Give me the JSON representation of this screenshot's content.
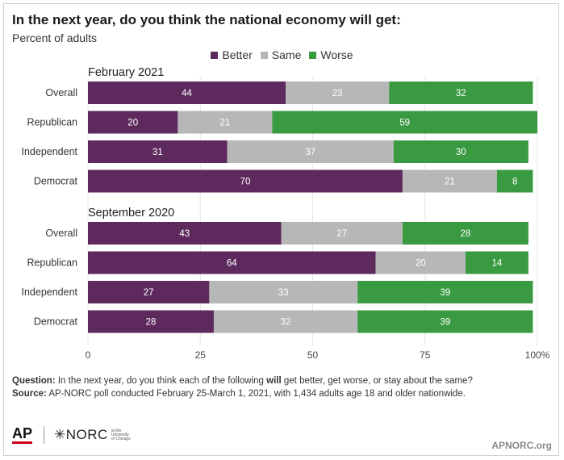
{
  "title": "In the next year, do you think the national economy will get:",
  "subtitle": "Percent of adults",
  "legend": [
    {
      "label": "Better",
      "color": "#5e2a5e"
    },
    {
      "label": "Same",
      "color": "#b7b7b7"
    },
    {
      "label": "Worse",
      "color": "#3a9a42"
    }
  ],
  "chart_data": {
    "type": "bar",
    "orientation": "horizontal",
    "stacked": true,
    "xlim": [
      0,
      100
    ],
    "x_ticks": [
      "0",
      "25",
      "50",
      "75",
      "100%"
    ],
    "groups": [
      {
        "label": "February 2021",
        "categories": [
          "Overall",
          "Republican",
          "Independent",
          "Democrat"
        ],
        "series": [
          {
            "name": "Better",
            "values": [
              44,
              20,
              31,
              70
            ]
          },
          {
            "name": "Same",
            "values": [
              23,
              21,
              37,
              21
            ]
          },
          {
            "name": "Worse",
            "values": [
              32,
              59,
              30,
              8
            ]
          }
        ]
      },
      {
        "label": "September 2020",
        "categories": [
          "Overall",
          "Republican",
          "Independent",
          "Democrat"
        ],
        "series": [
          {
            "name": "Better",
            "values": [
              43,
              64,
              27,
              28
            ]
          },
          {
            "name": "Same",
            "values": [
              27,
              20,
              33,
              32
            ]
          },
          {
            "name": "Worse",
            "values": [
              28,
              14,
              39,
              39
            ]
          }
        ]
      }
    ]
  },
  "footnotes": {
    "question_label": "Question:",
    "question_before": " In the next year, do you think each of the following ",
    "question_bold": "will",
    "question_after": " get better, get worse, or stay about the same?",
    "source_label": "Source:",
    "source_text": " AP-NORC poll conducted February 25-March 1, 2021, with 1,434 adults age 18 and older nationwide."
  },
  "logos": {
    "ap": "AP",
    "norc": "✳NORC",
    "norc_sub": "at the University of Chicago"
  },
  "site": "APNORC.org"
}
